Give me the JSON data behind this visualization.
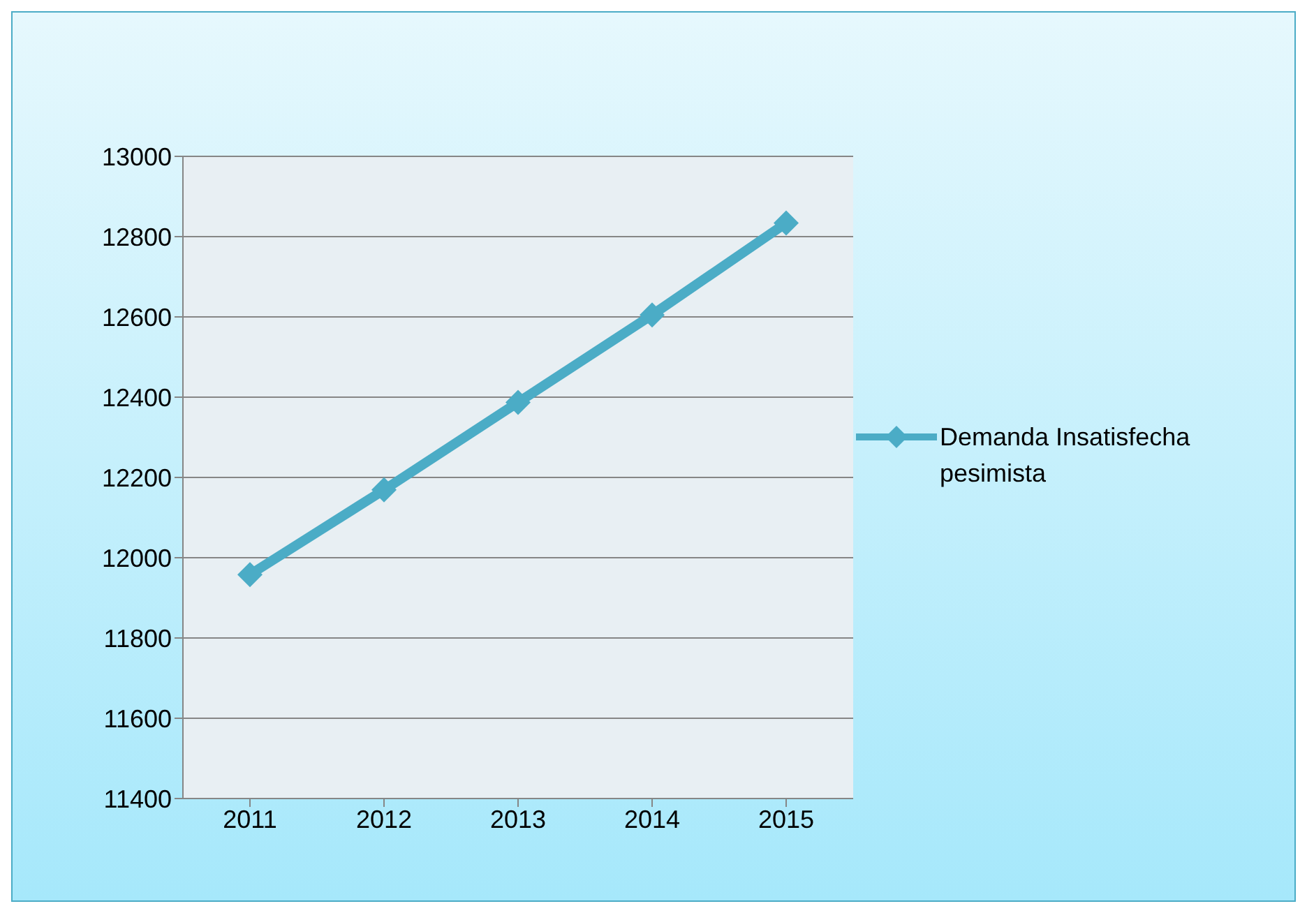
{
  "chart_data": {
    "type": "line",
    "categories": [
      "2011",
      "2012",
      "2013",
      "2014",
      "2015"
    ],
    "series": [
      {
        "name": "Demanda Insatisfecha pesimista",
        "color": "#4bacc6",
        "values": [
          11958,
          12169,
          12387,
          12605,
          12834
        ]
      }
    ],
    "ylim": [
      11400,
      13000
    ],
    "yticks": [
      11400,
      11600,
      11800,
      12000,
      12200,
      12400,
      12600,
      12800,
      13000
    ],
    "grid": "y",
    "legend": "right",
    "marker": "diamond",
    "line_style": "solid"
  }
}
